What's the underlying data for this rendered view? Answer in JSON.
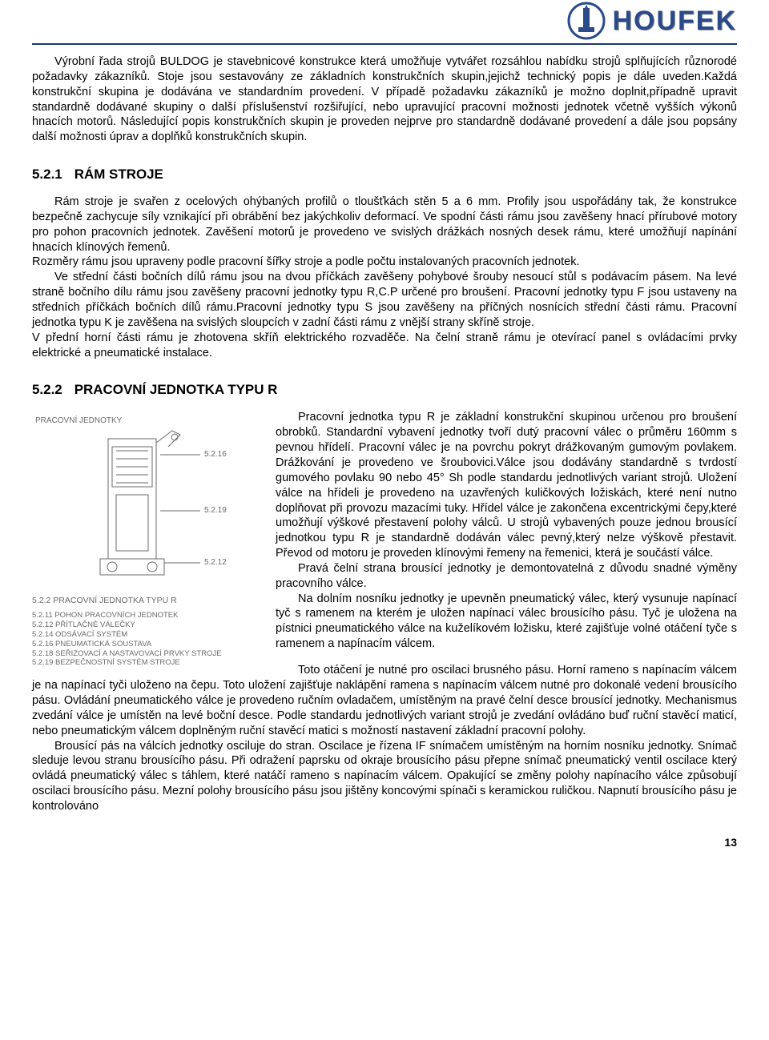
{
  "header": {
    "brand_text": "HOUFEK",
    "logo_color": "#2a4a8a",
    "line_color": "#1a3a6e"
  },
  "intro_para": "Výrobní řada strojů BULDOG je stavebnicové konstrukce která umožňuje vytvářet rozsáhlou nabídku strojů splňujících různorodé požadavky zákazníků. Stoje jsou sestavovány ze základních konstrukčních skupin,jejichž technický popis je dále uveden.Každá konstrukční skupina je dodávána ve standardním provedení. V případě požadavku zákazníků je možno doplnit,případně upravit standardně dodávané skupiny o další příslušenství rozšiřující, nebo upravující pracovní možnosti jednotek včetně vyšších výkonů hnacích motorů. Následující popis konstrukčních skupin je proveden nejprve pro standardně dodávané provedení a dále jsou popsány další možnosti úprav a doplňků konstrukčních skupin.",
  "section_521": {
    "num": "5.2.1",
    "title": "RÁM STROJE",
    "body": "Rám stroje je svařen z ocelových ohýbaných profilů o tloušťkách stěn 5 a 6 mm. Profily jsou uspořádány tak, že konstrukce bezpečně zachycuje síly vznikající při obrábění bez jakýchkoliv deformací. Ve spodní části rámu jsou zavěšeny hnací přírubové motory pro pohon pracovních jednotek. Zavěšení motorů je provedeno ve svislých drážkách nosných desek rámu, které umožňují napínání hnacích klínových řemenů.\nRozměry rámu jsou upraveny podle pracovní šířky stroje a podle počtu instalovaných pracovních jednotek.\n    Ve střední části bočních dílů rámu jsou na dvou příčkách zavěšeny pohybové šrouby nesoucí stůl s podávacím pásem. Na levé straně bočního dílu rámu jsou zavěšeny pracovní jednotky typu R,C.P určené pro broušení. Pracovní jednotky typu F jsou ustaveny na středních příčkách bočních dílů rámu.Pracovní jednotky typu S jsou zavěšeny na příčných nosnících střední části rámu. Pracovní jednotka typu K je zavěšena na svislých sloupcích v zadní části rámu z vnější strany skříně stroje.\nV přední horní části rámu je zhotovena skříň elektrického rozvaděče. Na čelní straně rámu je otevírací panel s ovládacími prvky elektrické a pneumatické instalace."
  },
  "section_522": {
    "num": "5.2.2",
    "title": "PRACOVNÍ JEDNOTKA TYPU R",
    "body_floated": "Pracovní jednotka typu R je základní konstrukční skupinou určenou pro broušení obrobků. Standardní vybavení jednotky tvoří dutý pracovní válec o průměru 160mm s pevnou hřídelí. Pracovní válec je na povrchu pokryt drážkovaným gumovým povlakem. Drážkování je provedeno ve šroubovici.Válce jsou dodávány standardně s tvrdostí gumového povlaku 90 nebo 45° Sh podle standardu jednotlivých variant strojů. Uložení válce na hřídeli je provedeno na uzavřených kuličkových ložiskách, které není nutno doplňovat při provozu mazacími tuky. Hřídel válce je zakončena excentrickými čepy,které umožňují výškové přestavení polohy válců. U strojů vybavených pouze jednou brousící jednotkou typu R je standardně dodáván válec pevný,který nelze výškově přestavit. Převod od motoru je proveden klínovými řemeny na řemenici, která je součástí válce.\n    Pravá čelní strana brousící jednotky je demontovatelná z důvodu snadné výměny pracovního válce.\n    Na dolním nosníku jednotky je upevněn pneumatický válec, který vysunuje napínací tyč s ramenem na kterém je uložen napínací válec brousícího pásu. Tyč je uložena na pístnici pneumatického válce na kuželíkovém ložisku, které zajišťuje volné otáčení tyče s ramenem a napínacím válcem.",
    "body_full": "Toto otáčení je nutné pro oscilaci brusného pásu. Horní rameno s napínacím válcem je na napínací tyči uloženo na čepu. Toto uložení zajišťuje naklápění ramena s napínacím válcem nutné pro dokonalé vedení brousícího pásu. Ovládání pneumatického válce je provedeno ručním ovladačem, umístěným na pravé čelní desce brousící jednotky. Mechanismus zvedání válce je umístěn na levé boční desce. Podle standardu jednotlivých variant strojů je zvedání ovládáno buď  ruční stavěcí maticí, nebo pneumatickým válcem doplněným ruční stavěcí matici s možností nastavení základní pracovní polohy.\n    Brousící pás na válcích jednotky osciluje do stran. Oscilace je řízena IF snímačem umístěným na horním nosníku jednotky. Snímač sleduje levou stranu brousícího pásu. Při odražení paprsku od okraje brousícího pásu přepne snímač pneumatický ventil oscilace který ovládá pneumatický válec s táhlem, které natáčí rameno s napínacím válcem. Opakující se změny polohy napínacího válce způsobují oscilaci brousícího pásu. Mezní polohy brousícího pásu jsou jištěny koncovými spínači s keramickou ruličkou. Napnutí brousícího pásu je kontrolováno"
  },
  "figure": {
    "header": "PRACOVNÍ JEDNOTKY",
    "callouts": [
      "5.2.16",
      "5.2.19",
      "5.2.12"
    ],
    "caption": "5.2.2 PRACOVNÍ JEDNOTKA TYPU R",
    "list": [
      "5.2.11  POHON PRACOVNÍCH JEDNOTEK",
      "5.2.12  PŘÍTLAČNÉ VÁLEČKY",
      "5.2.14  ODSÁVACÍ SYSTÉM",
      "5.2.16  PNEUMATICKÁ SOUSTAVA",
      "5.2.18  SEŘIZOVACÍ A NASTAVOVACÍ PRVKY STROJE",
      "5.2.19  BEZPEČNOSTNÍ SYSTÉM STROJE"
    ]
  },
  "page_number": "13",
  "colors": {
    "text": "#000000",
    "figure_text": "#6a6a6a",
    "logo": "#2a4a8a"
  }
}
